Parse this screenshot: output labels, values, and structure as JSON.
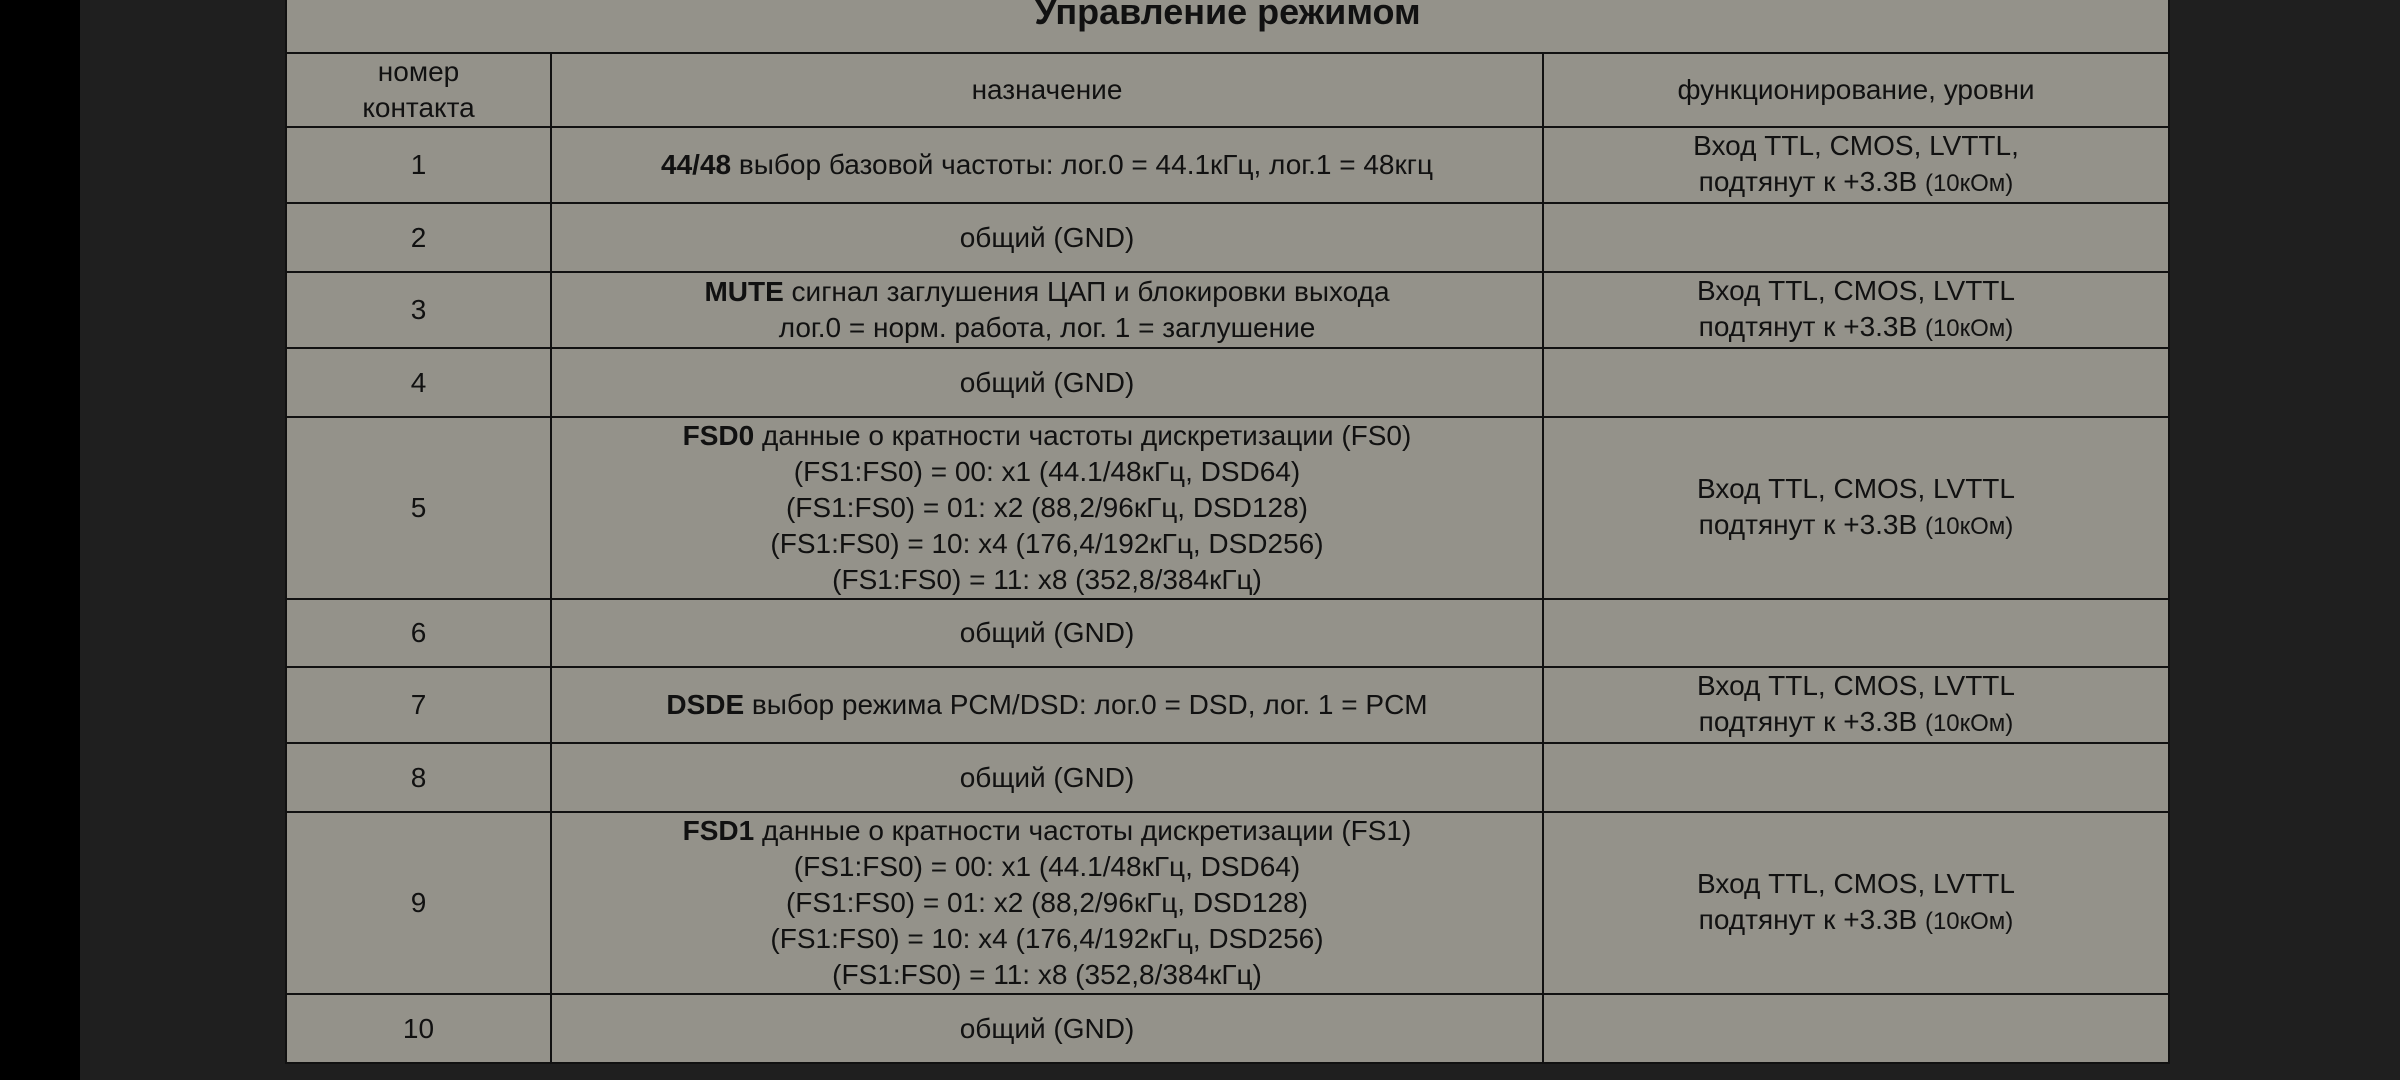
{
  "title": "Управление режимом",
  "headers": [
    "номер\nконтакта",
    "назначение",
    "функционирование, уровни"
  ],
  "header_lines": {
    "pin": [
      "номер",
      "контакта"
    ],
    "purpose": "назначение",
    "function": "функционирование, уровни"
  },
  "rows": [
    {
      "pin": "1",
      "bold": "44/48",
      "desc": [
        " выбор базовой частоты: лог.0 = 44.1кГц, лог.1 = 48кгц"
      ],
      "func1": "Вход TTL, CMOS, LVTTL,",
      "func2": "подтянут к +3.3В ",
      "func_small": "(10кОм)"
    },
    {
      "pin": "2",
      "bold": "",
      "desc": [
        "общий (GND)"
      ],
      "func1": "",
      "func2": "",
      "func_small": ""
    },
    {
      "pin": "3",
      "bold": "MUTE",
      "desc": [
        " сигнал заглушения ЦАП и блокировки выхода",
        "лог.0 = норм. работа, лог. 1 = заглушение"
      ],
      "func1": "Вход TTL, CMOS, LVTTL",
      "func2": "подтянут к +3.3В ",
      "func_small": "(10кОм)"
    },
    {
      "pin": "4",
      "bold": "",
      "desc": [
        "общий (GND)"
      ],
      "func1": "",
      "func2": "",
      "func_small": ""
    },
    {
      "pin": "5",
      "bold": "FSD0",
      "desc": [
        " данные о кратности частоты дискретизации (FS0)",
        "(FS1:FS0) = 00: x1 (44.1/48кГц, DSD64)",
        "(FS1:FS0) = 01: x2 (88,2/96кГц, DSD128)",
        "(FS1:FS0) = 10: x4 (176,4/192кГц, DSD256)",
        "(FS1:FS0) = 11: x8 (352,8/384кГц)"
      ],
      "func1": "Вход TTL, CMOS, LVTTL",
      "func2": "подтянут к +3.3В ",
      "func_small": "(10кОм)"
    },
    {
      "pin": "6",
      "bold": "",
      "desc": [
        "общий (GND)"
      ],
      "func1": "",
      "func2": "",
      "func_small": ""
    },
    {
      "pin": "7",
      "bold": "DSDE",
      "desc": [
        " выбор режима PCM/DSD: лог.0 = DSD, лог. 1 = PCM"
      ],
      "func1": "Вход TTL, CMOS, LVTTL",
      "func2": "подтянут к +3.3В ",
      "func_small": "(10кОм)"
    },
    {
      "pin": "8",
      "bold": "",
      "desc": [
        "общий (GND)"
      ],
      "func1": "",
      "func2": "",
      "func_small": ""
    },
    {
      "pin": "9",
      "bold": "FSD1",
      "desc": [
        " данные о кратности частоты дискретизации (FS1)",
        "(FS1:FS0) = 00: x1 (44.1/48кГц, DSD64)",
        "(FS1:FS0) = 01: x2 (88,2/96кГц, DSD128)",
        "(FS1:FS0) = 10: x4 (176,4/192кГц, DSD256)",
        "(FS1:FS0) = 11: x8 (352,8/384кГц)"
      ],
      "func1": "Вход TTL, CMOS, LVTTL",
      "func2": "подтянут к +3.3В ",
      "func_small": "(10кОм)"
    },
    {
      "pin": "10",
      "bold": "",
      "desc": [
        "общий (GND)"
      ],
      "func1": "",
      "func2": "",
      "func_small": ""
    }
  ],
  "colors": {
    "table_bg": "#94928a",
    "page_bg": "#1f1f1f",
    "border": "#111111"
  }
}
